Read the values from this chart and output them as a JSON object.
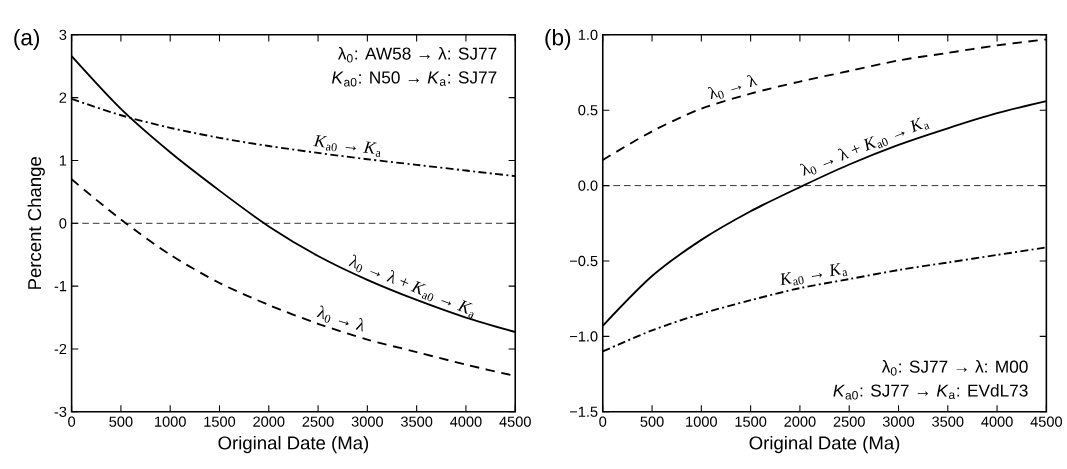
{
  "chart_data": [
    {
      "type": "line",
      "title": "(a)",
      "xlabel": "Original Date (Ma)",
      "ylabel": "Percent Change",
      "x": [
        0,
        500,
        1000,
        1500,
        2000,
        2500,
        3000,
        3500,
        4000,
        4500
      ],
      "series": [
        {
          "name": "*K*$_{a0}$ → *K*$_{a}$",
          "color": "#000000",
          "line_style": "dashdot",
          "values": [
            1.98,
            1.72,
            1.52,
            1.36,
            1.23,
            1.12,
            1.02,
            0.93,
            0.84,
            0.75
          ]
        },
        {
          "name": "λ$_{0}$ → λ + *K*$_{a0}$ → *K*$_{a}$",
          "color": "#000000",
          "line_style": "solid",
          "values": [
            2.66,
            1.82,
            1.13,
            0.52,
            -0.05,
            -0.52,
            -0.9,
            -1.22,
            -1.5,
            -1.73
          ]
        },
        {
          "name": "λ$_{0}$ → λ",
          "color": "#000000",
          "line_style": "dashed",
          "values": [
            0.7,
            0.06,
            -0.5,
            -0.95,
            -1.3,
            -1.6,
            -1.85,
            -2.05,
            -2.25,
            -2.43
          ]
        }
      ],
      "xlim": [
        0,
        4500
      ],
      "xticks": [
        0,
        500,
        1000,
        1500,
        2000,
        2500,
        3000,
        3500,
        4000,
        4500
      ],
      "ylim": [
        -3,
        3
      ],
      "yticks": [
        -3,
        -2,
        -1,
        0,
        1,
        2,
        3
      ],
      "ref_lines": [
        {
          "axis": "y",
          "value": 0,
          "color": "#000000",
          "line_style": "dashed"
        }
      ],
      "annotations": [
        "λ$_{0}$: AW58 → λ: SJ77",
        "*K*$_{a0}$: N50 → *K*$_{a}$: SJ77"
      ],
      "grid": false
    },
    {
      "type": "line",
      "title": "(b)",
      "xlabel": "Original Date (Ma)",
      "x": [
        0,
        500,
        1000,
        1500,
        2000,
        2500,
        3000,
        3500,
        4000,
        4500
      ],
      "series": [
        {
          "name": "λ$_{0}$ → λ",
          "color": "#000000",
          "line_style": "dashed",
          "values": [
            0.17,
            0.36,
            0.51,
            0.61,
            0.69,
            0.76,
            0.83,
            0.88,
            0.93,
            0.97
          ]
        },
        {
          "name": "λ$_{0}$ → λ + *K*$_{a0}$ → *K*$_{a}$",
          "color": "#000000",
          "line_style": "solid",
          "values": [
            -0.93,
            -0.6,
            -0.36,
            -0.17,
            -0.01,
            0.14,
            0.27,
            0.38,
            0.48,
            0.56
          ]
        },
        {
          "name": "*K*$_{a0}$ → *K*$_{a}$",
          "color": "#000000",
          "line_style": "dashdot",
          "values": [
            -1.1,
            -0.96,
            -0.85,
            -0.76,
            -0.68,
            -0.62,
            -0.56,
            -0.51,
            -0.46,
            -0.41
          ]
        }
      ],
      "xlim": [
        0,
        4500
      ],
      "xticks": [
        0,
        500,
        1000,
        1500,
        2000,
        2500,
        3000,
        3500,
        4000,
        4500
      ],
      "ylim": [
        -1.5,
        1.0
      ],
      "yticks": [
        {
          "value": -1.5,
          "label": "−1.5"
        },
        {
          "value": -1.0,
          "label": "−1.0"
        },
        {
          "value": -0.5,
          "label": "−0.5"
        },
        {
          "value": 0.0,
          "label": "0.0"
        },
        {
          "value": 0.5,
          "label": "0.5"
        },
        {
          "value": 1.0,
          "label": "1.0"
        }
      ],
      "ref_lines": [
        {
          "axis": "y",
          "value": 0,
          "color": "#000000",
          "line_style": "dashed"
        }
      ],
      "annotations": [
        "λ$_{0}$: SJ77 → λ: M00",
        "*K*$_{a0}$: SJ77 → *K*$_{a}$: EVdL73"
      ],
      "grid": false
    }
  ]
}
